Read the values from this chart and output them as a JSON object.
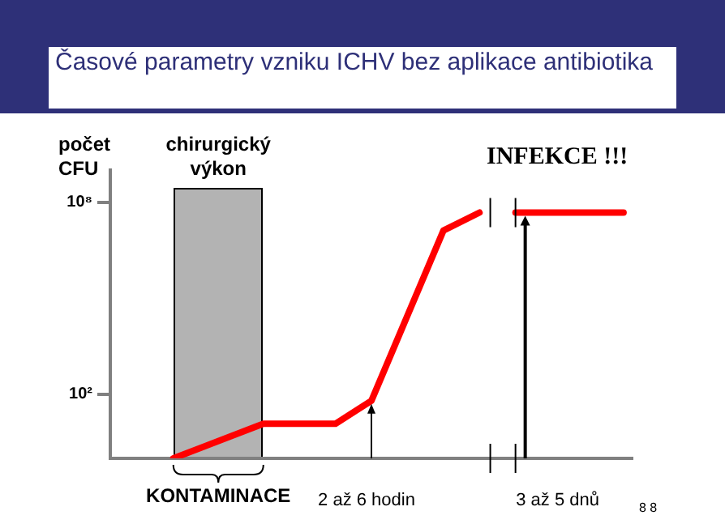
{
  "chart_data": {
    "type": "line",
    "title": "Časové parametry vzniku ICHV bez aplikace antibiotika",
    "ylabel": "počet CFU",
    "annotations": [
      "chirurgický výkon",
      "INFEKCE !!!",
      "KONTAMINACE",
      "2 až 6 hodin",
      "3 až 5 dnů",
      "8 8"
    ],
    "categories": [
      null,
      null,
      null,
      null,
      null,
      null,
      null,
      null,
      null,
      null,
      null,
      null,
      null,
      null,
      null,
      null,
      null,
      null,
      null,
      null,
      null,
      null,
      null,
      null,
      null,
      null,
      null,
      null,
      null
    ],
    "series": [
      {
        "color": "#ff0000",
        "values": [
          null,
          null,
          null,
          1,
          null,
          null,
          null,
          null,
          12,
          null,
          null,
          null,
          12,
          null,
          63,
          null,
          null,
          null,
          13000000,
          null,
          47000000,
          null,
          null,
          null,
          null,
          null,
          null,
          null,
          null
        ]
      },
      {
        "color": "#ff0000",
        "values": [
          null,
          null,
          null,
          null,
          null,
          null,
          null,
          null,
          null,
          null,
          null,
          null,
          null,
          null,
          null,
          null,
          null,
          null,
          null,
          null,
          null,
          null,
          47000000,
          null,
          null,
          null,
          null,
          null,
          47000000
        ]
      }
    ],
    "ylim": [
      1,
      1000000000
    ],
    "log": true,
    "yticks": [
      {
        "value": 100,
        "label": "10²"
      },
      {
        "value": 100000000,
        "label": "10⁸"
      }
    ],
    "tick_labels": "y",
    "grid": false,
    "legend": false,
    "marker": "none",
    "line_style": "solid"
  }
}
